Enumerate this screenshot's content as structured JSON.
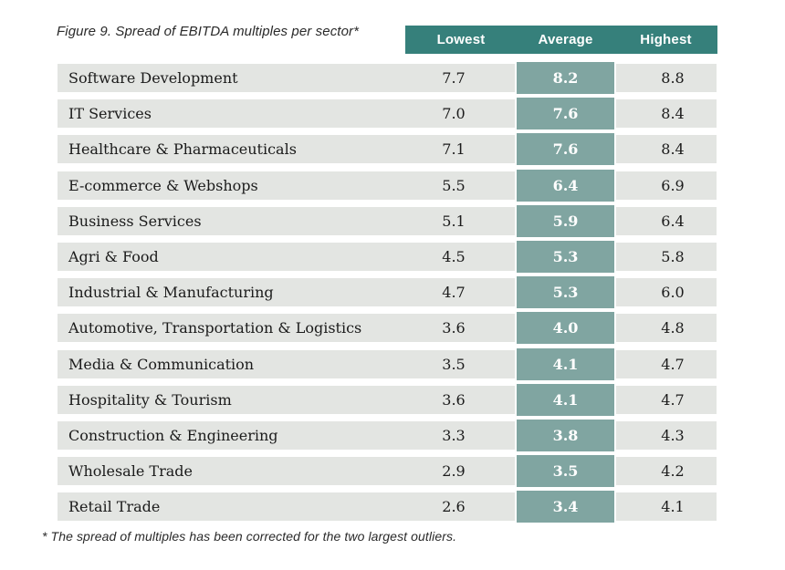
{
  "figure": {
    "title": "Figure 9. Spread of EBITDA multiples per sector*",
    "footnote": "* The spread of multiples has been corrected for the two largest outliers."
  },
  "chart_data": {
    "type": "table",
    "title": "Figure 9. Spread of EBITDA multiples per sector*",
    "columns": [
      "Lowest",
      "Average",
      "Highest"
    ],
    "highlight_column": "Average",
    "rows": [
      {
        "sector": "Software Development",
        "lowest": "7.7",
        "average": "8.2",
        "highest": "8.8"
      },
      {
        "sector": "IT Services",
        "lowest": "7.0",
        "average": "7.6",
        "highest": "8.4"
      },
      {
        "sector": "Healthcare & Pharmaceuticals",
        "lowest": "7.1",
        "average": "7.6",
        "highest": "8.4"
      },
      {
        "sector": "E-commerce & Webshops",
        "lowest": "5.5",
        "average": "6.4",
        "highest": "6.9"
      },
      {
        "sector": "Business Services",
        "lowest": "5.1",
        "average": "5.9",
        "highest": "6.4"
      },
      {
        "sector": "Agri & Food",
        "lowest": "4.5",
        "average": "5.3",
        "highest": "5.8"
      },
      {
        "sector": "Industrial & Manufacturing",
        "lowest": "4.7",
        "average": "5.3",
        "highest": "6.0"
      },
      {
        "sector": "Automotive, Transportation & Logistics",
        "lowest": "3.6",
        "average": "4.0",
        "highest": "4.8"
      },
      {
        "sector": "Media & Communication",
        "lowest": "3.5",
        "average": "4.1",
        "highest": "4.7"
      },
      {
        "sector": "Hospitality & Tourism",
        "lowest": "3.6",
        "average": "4.1",
        "highest": "4.7"
      },
      {
        "sector": "Construction & Engineering",
        "lowest": "3.3",
        "average": "3.8",
        "highest": "4.3"
      },
      {
        "sector": "Wholesale Trade",
        "lowest": "2.9",
        "average": "3.5",
        "highest": "4.2"
      },
      {
        "sector": "Retail Trade",
        "lowest": "2.6",
        "average": "3.4",
        "highest": "4.1"
      }
    ],
    "footnote": "* The spread of multiples has been corrected for the two largest outliers."
  },
  "colors": {
    "header_bg": "#36807b",
    "header_text": "#ffffff",
    "average_cell_bg": "#80a5a1",
    "average_cell_text": "#ffffff",
    "row_bg": "#e3e5e2",
    "body_text": "#1b1b1b",
    "caption_text": "#2a2a2a"
  }
}
